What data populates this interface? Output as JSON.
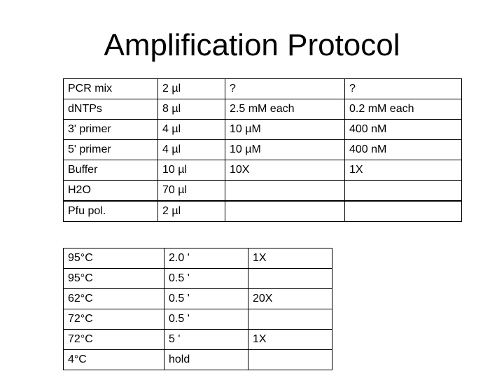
{
  "title": "Amplification Protocol",
  "reaction_table": [
    [
      "PCR mix",
      "2 µl",
      "?",
      "?"
    ],
    [
      "dNTPs",
      "8 µl",
      "2.5 mM each",
      "0.2 mM each"
    ],
    [
      "3' primer",
      "4 µl",
      "10 µM",
      "400 nM"
    ],
    [
      "5' primer",
      "4 µl",
      "10 µM",
      "400 nM"
    ],
    [
      "Buffer",
      "10 µl",
      "10X",
      "1X"
    ],
    [
      "H2O",
      "70 µl",
      "",
      ""
    ],
    [
      "Pfu pol.",
      "2 µl",
      "",
      ""
    ]
  ],
  "cycle_table": [
    [
      "95°C",
      "2.0 '",
      "1X"
    ],
    [
      "95°C",
      "0.5 '",
      ""
    ],
    [
      "62°C",
      "0.5 '",
      "20X"
    ],
    [
      "72°C",
      "0.5 '",
      ""
    ],
    [
      "72°C",
      "5 '",
      "1X"
    ],
    [
      "4°C",
      "hold",
      ""
    ]
  ]
}
